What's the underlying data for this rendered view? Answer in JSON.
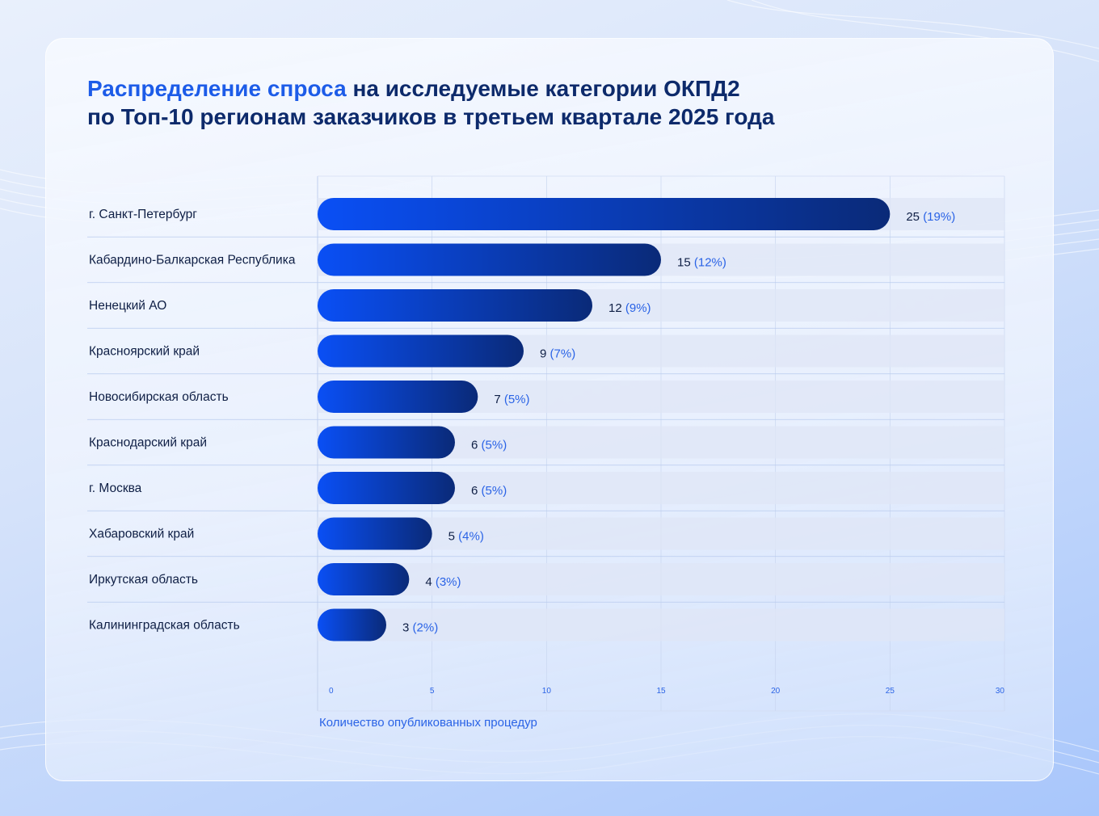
{
  "title": {
    "accent": "Распределение спроса",
    "line1_rest": " на исследуемые категории ОКПД2",
    "line2": "по Топ-10 регионам заказчиков в третьем квартале 2025 года"
  },
  "colors": {
    "bar_start": "#0a4ff5",
    "bar_end": "#0a2a78",
    "track": "#dfe6f6",
    "accent": "#2a63e6",
    "title": "#0d2a6b"
  },
  "chart_data": {
    "type": "bar",
    "orientation": "horizontal",
    "categories": [
      "г. Санкт-Петербург",
      "Кабардино-Балкарская Республика",
      "Ненецкий АО",
      "Красноярский край",
      "Новосибирская область",
      "Краснодарский край",
      "г. Москва",
      "Хабаровский край",
      "Иркутская область",
      "Калининградская область"
    ],
    "values": [
      25,
      15,
      12,
      9,
      7,
      6,
      6,
      5,
      4,
      3
    ],
    "value_labels": [
      "25",
      "15",
      "12",
      "9",
      "7",
      "6",
      "6",
      "5",
      "4",
      "3"
    ],
    "percent_labels": [
      "(19%)",
      "(12%)",
      "(9%)",
      "(7%)",
      "(5%)",
      "(5%)",
      "(5%)",
      "(4%)",
      "(3%)",
      "(2%)"
    ],
    "xlim": [
      0,
      30
    ],
    "xticks": [
      "0",
      "5",
      "10",
      "15",
      "20",
      "25",
      "30"
    ],
    "xlabel": "Количество опубликованных процедур",
    "grid": true
  }
}
